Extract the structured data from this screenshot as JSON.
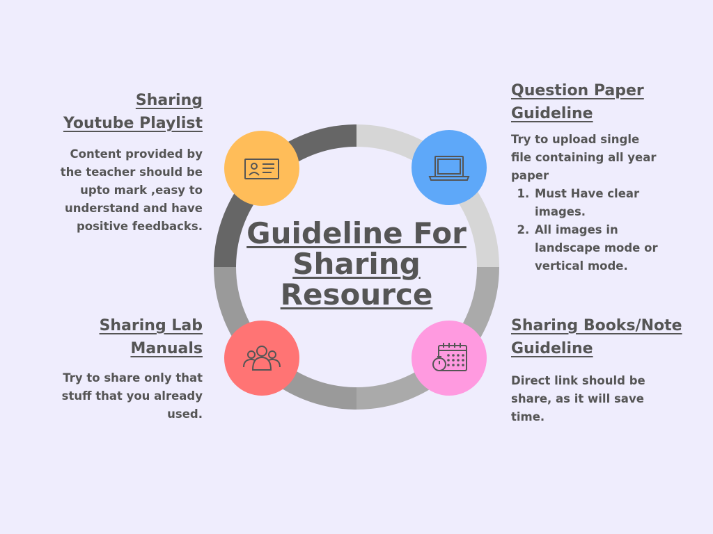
{
  "title": "Guideline For Sharing Resource",
  "colors": {
    "background": "#efedfd",
    "text": "#555555",
    "ring_dark": "#666666",
    "ring_mid": "#9a9a9a",
    "ring_gray": "#aaaaaa",
    "ring_light": "#d6d6d6",
    "circle_top_left": "#ffbd59",
    "circle_top_right": "#5ea8f9",
    "circle_bottom_left": "#ff7474",
    "circle_bottom_right": "#ff9ae0"
  },
  "sections": {
    "youtube": {
      "heading_1": "Sharing",
      "heading_2": "Youtube Playlist",
      "body": [
        "Content provided by",
        "the teacher should be",
        "upto mark ,easy to",
        "understand and have",
        "positive feedbacks."
      ],
      "icon": "id-card-icon"
    },
    "question_paper": {
      "heading_1": "Question Paper",
      "heading_2": "Guideline",
      "body": [
        "Try to upload single",
        "file containing all year",
        "paper"
      ],
      "list": [
        "Must Have clear images.",
        "All images in landscape mode or vertical mode."
      ],
      "icon": "laptop-icon"
    },
    "lab_manuals": {
      "heading_1": "Sharing Lab",
      "heading_2": "Manuals",
      "body": [
        "Try to share only that",
        "stuff that you already",
        "used."
      ],
      "icon": "group-icon"
    },
    "books_notes": {
      "heading_1": "Sharing Books/Note",
      "heading_2": "Guideline",
      "body": [
        "Direct link should be",
        "share, as it will save",
        "time."
      ],
      "icon": "calendar-stopwatch-icon"
    }
  }
}
